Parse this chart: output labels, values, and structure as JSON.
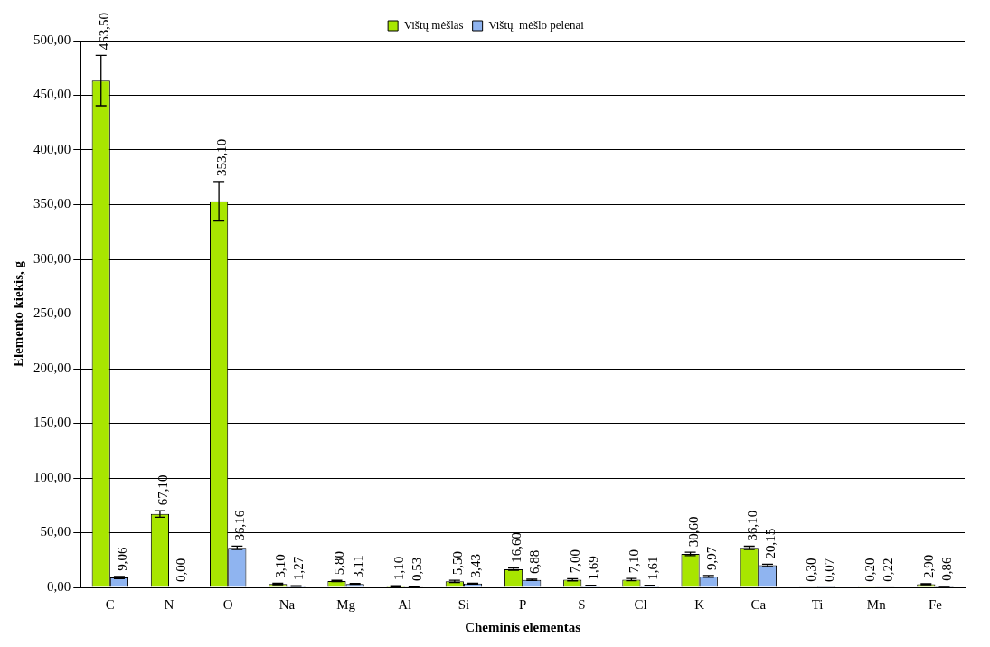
{
  "chart_data": {
    "type": "bar",
    "xlabel": "Cheminis elementas",
    "ylabel": "Elemento kiekis, g",
    "categories": [
      "C",
      "N",
      "O",
      "Na",
      "Mg",
      "Al",
      "Si",
      "P",
      "S",
      "Cl",
      "K",
      "Ca",
      "Ti",
      "Mn",
      "Fe"
    ],
    "series": [
      {
        "name": "Vištų mėšlas",
        "color": "#a8e600",
        "values": [
          463.5,
          67.1,
          353.1,
          3.1,
          5.8,
          1.1,
          5.5,
          16.6,
          7.0,
          7.1,
          30.6,
          36.1,
          0.3,
          0.2,
          2.9
        ],
        "errors": [
          23,
          3,
          18,
          0.6,
          0.6,
          0.5,
          1,
          1,
          1,
          1,
          1.5,
          1.5,
          null,
          null,
          0.5
        ],
        "value_labels": [
          "463,50",
          "67,10",
          "353,10",
          "3,10",
          "5,80",
          "1,10",
          "5,50",
          "16,60",
          "7,00",
          "7,10",
          "30,60",
          "36,10",
          "0,30",
          "0,20",
          "2,90"
        ]
      },
      {
        "name": "Vištų  mėšlo pelenai",
        "color": "#8fb4f0",
        "values": [
          9.06,
          0.0,
          36.16,
          1.27,
          3.11,
          0.53,
          3.43,
          6.88,
          1.69,
          1.61,
          9.97,
          20.15,
          0.07,
          0.22,
          0.86
        ],
        "errors": [
          1,
          null,
          1.5,
          0.3,
          0.4,
          0.2,
          0.4,
          0.6,
          0.3,
          0.3,
          0.8,
          1,
          null,
          null,
          0.2
        ],
        "value_labels": [
          "9,06",
          "0,00",
          "36,16",
          "1,27",
          "3,11",
          "0,53",
          "3,43",
          "6,88",
          "1,69",
          "1,61",
          "9,97",
          "20,15",
          "0,07",
          "0,22",
          "0,86"
        ]
      }
    ],
    "ylim": [
      0,
      500
    ],
    "yticks": [
      {
        "value": 0,
        "label": "0,00"
      },
      {
        "value": 50,
        "label": "50,00"
      },
      {
        "value": 100,
        "label": "100,00"
      },
      {
        "value": 150,
        "label": "150,00"
      },
      {
        "value": 200,
        "label": "200,00"
      },
      {
        "value": 250,
        "label": "250,00"
      },
      {
        "value": 300,
        "label": "300,00"
      },
      {
        "value": 350,
        "label": "350,00"
      },
      {
        "value": 400,
        "label": "400,00"
      },
      {
        "value": 450,
        "label": "450,00"
      },
      {
        "value": 500,
        "label": "500,00"
      }
    ],
    "grid": "y",
    "legend": "top"
  }
}
